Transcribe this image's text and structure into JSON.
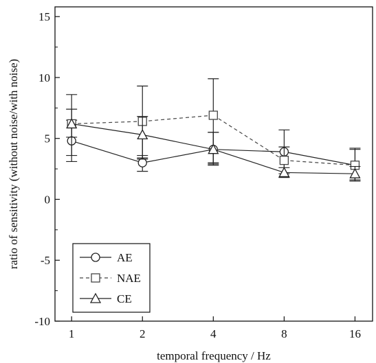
{
  "chart_data": {
    "type": "line",
    "xscale": "log2",
    "x": [
      1,
      2,
      4,
      8,
      16
    ],
    "xticks": [
      "1",
      "2",
      "4",
      "8",
      "16"
    ],
    "yticks": [
      "-10",
      "-5",
      "0",
      "5",
      "10",
      "15"
    ],
    "ytick_values": [
      -10,
      -5,
      0,
      5,
      10,
      15
    ],
    "xlabel": "temporal frequency / Hz",
    "ylabel": "ratio of sensitivity (without noise/with noise)",
    "xlim": [
      0.85,
      19
    ],
    "ylim": [
      -10,
      15.8
    ],
    "grid": false,
    "legend_position": "bottom-left",
    "series": [
      {
        "name": "AE",
        "marker": "circle",
        "line_style": "solid",
        "color": "#222222",
        "values": [
          4.8,
          3.0,
          4.1,
          3.9,
          2.8
        ],
        "err_low": [
          3.1,
          2.3,
          2.9,
          1.8,
          1.6
        ],
        "err_high": [
          6.5,
          3.6,
          5.5,
          5.7,
          4.1
        ]
      },
      {
        "name": "NAE",
        "marker": "square",
        "line_style": "dashed",
        "color": "#444444",
        "values": [
          6.2,
          6.4,
          6.9,
          3.2,
          2.8
        ],
        "err_low": [
          3.6,
          3.4,
          3.0,
          2.1,
          1.6
        ],
        "err_high": [
          8.6,
          9.3,
          9.9,
          4.3,
          4.2
        ]
      },
      {
        "name": "CE",
        "marker": "triangle",
        "line_style": "solid",
        "color": "#222222",
        "values": [
          6.2,
          5.3,
          4.1,
          2.2,
          2.1
        ],
        "err_low": [
          5.1,
          3.3,
          2.8,
          1.8,
          1.5
        ],
        "err_high": [
          7.4,
          6.8,
          5.5,
          2.6,
          2.7
        ]
      }
    ]
  }
}
